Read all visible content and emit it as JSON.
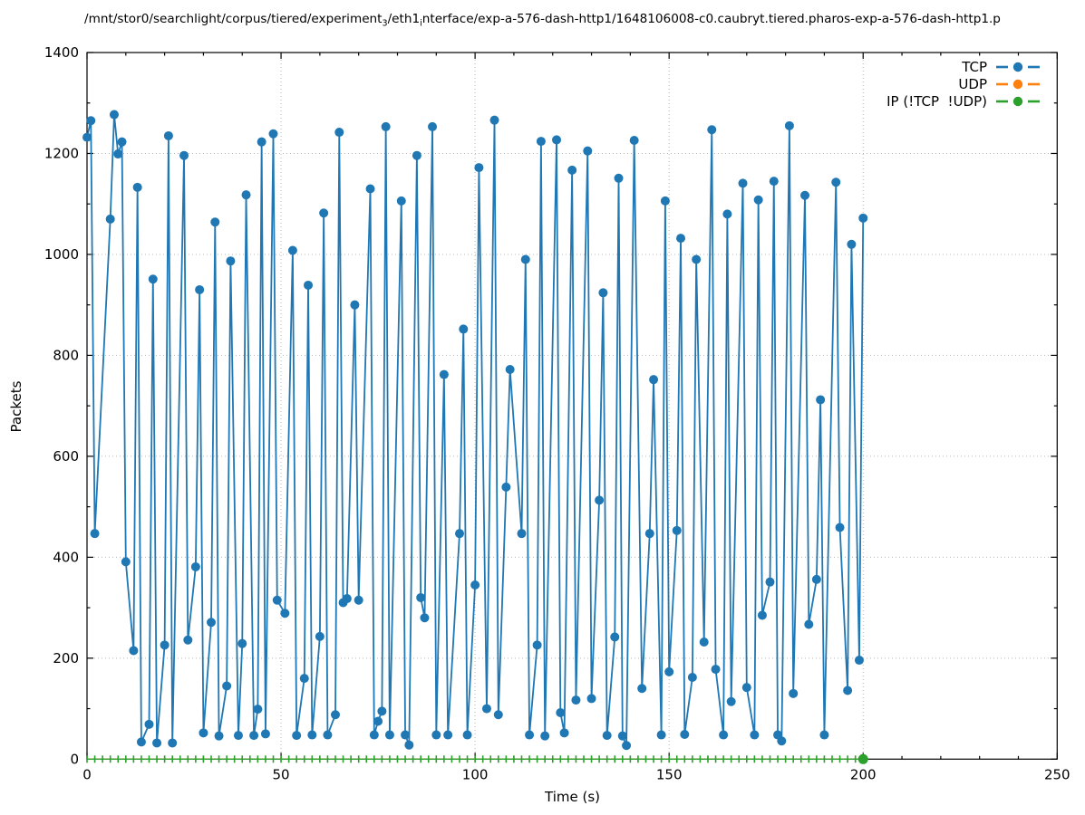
{
  "title": {
    "seg1": "/mnt/stor0/searchlight/corpus/tiered/experiment",
    "sub1": "3",
    "seg2": "/eth1",
    "sub2": "i",
    "seg3": "nterface/exp-a-576-dash-http1/1648106008-c0.caubryt.tiered.pharos-exp-a-576-dash-http1.p"
  },
  "legend": {
    "items": [
      {
        "label": "TCP",
        "color": "#1f77b4"
      },
      {
        "label": "UDP",
        "color": "#ff7f0e"
      },
      {
        "label": "IP (!TCP  !UDP)",
        "color": "#2ca02c"
      }
    ]
  },
  "chart_data": {
    "type": "line",
    "style": "linespoints",
    "title": "/mnt/stor0/searchlight/corpus/tiered/experiment_3/eth1_interface/exp-a-576-dash-http1/1648106008-c0.caubryt.tiered.pharos-exp-a-576-dash-http1.p",
    "xlabel": "Time (s)",
    "ylabel": "Packets",
    "xlim": [
      0,
      250
    ],
    "ylim": [
      0,
      1400
    ],
    "xticks": [
      0,
      50,
      100,
      150,
      200,
      250
    ],
    "yticks": [
      0,
      200,
      400,
      600,
      800,
      1000,
      1200,
      1400
    ],
    "x_minor_step": 10,
    "y_minor_step": 100,
    "grid": true,
    "legend_position": "top-right",
    "series": [
      {
        "name": "TCP",
        "color": "#1f77b4",
        "points": [
          [
            0,
            1232
          ],
          [
            1,
            1265
          ],
          [
            2,
            447
          ],
          [
            6,
            1070
          ],
          [
            7,
            1277
          ],
          [
            8,
            1199
          ],
          [
            9,
            1223
          ],
          [
            10,
            391
          ],
          [
            12,
            215
          ],
          [
            13,
            1133
          ],
          [
            14,
            34
          ],
          [
            16,
            69
          ],
          [
            17,
            951
          ],
          [
            18,
            32
          ],
          [
            20,
            226
          ],
          [
            21,
            1235
          ],
          [
            22,
            32
          ],
          [
            25,
            1196
          ],
          [
            26,
            236
          ],
          [
            28,
            381
          ],
          [
            29,
            930
          ],
          [
            30,
            52
          ],
          [
            32,
            271
          ],
          [
            33,
            1064
          ],
          [
            34,
            46
          ],
          [
            36,
            145
          ],
          [
            37,
            987
          ],
          [
            39,
            47
          ],
          [
            40,
            229
          ],
          [
            41,
            1118
          ],
          [
            43,
            47
          ],
          [
            44,
            99
          ],
          [
            45,
            1223
          ],
          [
            46,
            50
          ],
          [
            48,
            1239
          ],
          [
            49,
            315
          ],
          [
            51,
            289
          ],
          [
            53,
            1008
          ],
          [
            54,
            47
          ],
          [
            56,
            160
          ],
          [
            57,
            939
          ],
          [
            58,
            48
          ],
          [
            60,
            243
          ],
          [
            61,
            1082
          ],
          [
            62,
            48
          ],
          [
            64,
            88
          ],
          [
            65,
            1242
          ],
          [
            66,
            310
          ],
          [
            67,
            318
          ],
          [
            69,
            900
          ],
          [
            70,
            315
          ],
          [
            73,
            1130
          ],
          [
            74,
            48
          ],
          [
            75,
            75
          ],
          [
            76,
            95
          ],
          [
            77,
            1253
          ],
          [
            78,
            48
          ],
          [
            81,
            1106
          ],
          [
            82,
            48
          ],
          [
            83,
            28
          ],
          [
            85,
            1196
          ],
          [
            86,
            320
          ],
          [
            87,
            280
          ],
          [
            89,
            1253
          ],
          [
            90,
            48
          ],
          [
            92,
            762
          ],
          [
            93,
            48
          ],
          [
            96,
            447
          ],
          [
            97,
            852
          ],
          [
            98,
            48
          ],
          [
            100,
            345
          ],
          [
            101,
            1172
          ],
          [
            103,
            100
          ],
          [
            105,
            1266
          ],
          [
            106,
            88
          ],
          [
            108,
            539
          ],
          [
            109,
            772
          ],
          [
            112,
            447
          ],
          [
            113,
            990
          ],
          [
            114,
            48
          ],
          [
            116,
            226
          ],
          [
            117,
            1224
          ],
          [
            118,
            46
          ],
          [
            121,
            1227
          ],
          [
            122,
            92
          ],
          [
            123,
            52
          ],
          [
            125,
            1167
          ],
          [
            126,
            117
          ],
          [
            129,
            1205
          ],
          [
            130,
            120
          ],
          [
            132,
            513
          ],
          [
            133,
            924
          ],
          [
            134,
            47
          ],
          [
            136,
            242
          ],
          [
            137,
            1151
          ],
          [
            138,
            46
          ],
          [
            139,
            27
          ],
          [
            141,
            1226
          ],
          [
            143,
            140
          ],
          [
            145,
            447
          ],
          [
            146,
            752
          ],
          [
            148,
            48
          ],
          [
            149,
            1106
          ],
          [
            150,
            173
          ],
          [
            152,
            453
          ],
          [
            153,
            1032
          ],
          [
            154,
            49
          ],
          [
            156,
            162
          ],
          [
            157,
            990
          ],
          [
            159,
            232
          ],
          [
            161,
            1247
          ],
          [
            162,
            178
          ],
          [
            164,
            48
          ],
          [
            165,
            1080
          ],
          [
            166,
            114
          ],
          [
            169,
            1141
          ],
          [
            170,
            142
          ],
          [
            172,
            48
          ],
          [
            173,
            1108
          ],
          [
            174,
            285
          ],
          [
            176,
            351
          ],
          [
            177,
            1145
          ],
          [
            178,
            48
          ],
          [
            179,
            36
          ],
          [
            181,
            1255
          ],
          [
            182,
            130
          ],
          [
            185,
            1117
          ],
          [
            186,
            267
          ],
          [
            188,
            356
          ],
          [
            189,
            712
          ],
          [
            190,
            48
          ],
          [
            193,
            1143
          ],
          [
            194,
            459
          ],
          [
            196,
            136
          ],
          [
            197,
            1020
          ],
          [
            199,
            196
          ],
          [
            200,
            1072
          ]
        ]
      },
      {
        "name": "UDP",
        "color": "#ff7f0e",
        "value": 0,
        "t_start": 0,
        "t_end": 200,
        "note": "constant 0 packets; fully occluded by IP series on the x-axis"
      },
      {
        "name": "IP (!TCP  !UDP)",
        "color": "#2ca02c",
        "value": 0,
        "t_start": 0,
        "t_end": 200,
        "point_interval": 2,
        "big_marker_t": 200
      }
    ]
  }
}
